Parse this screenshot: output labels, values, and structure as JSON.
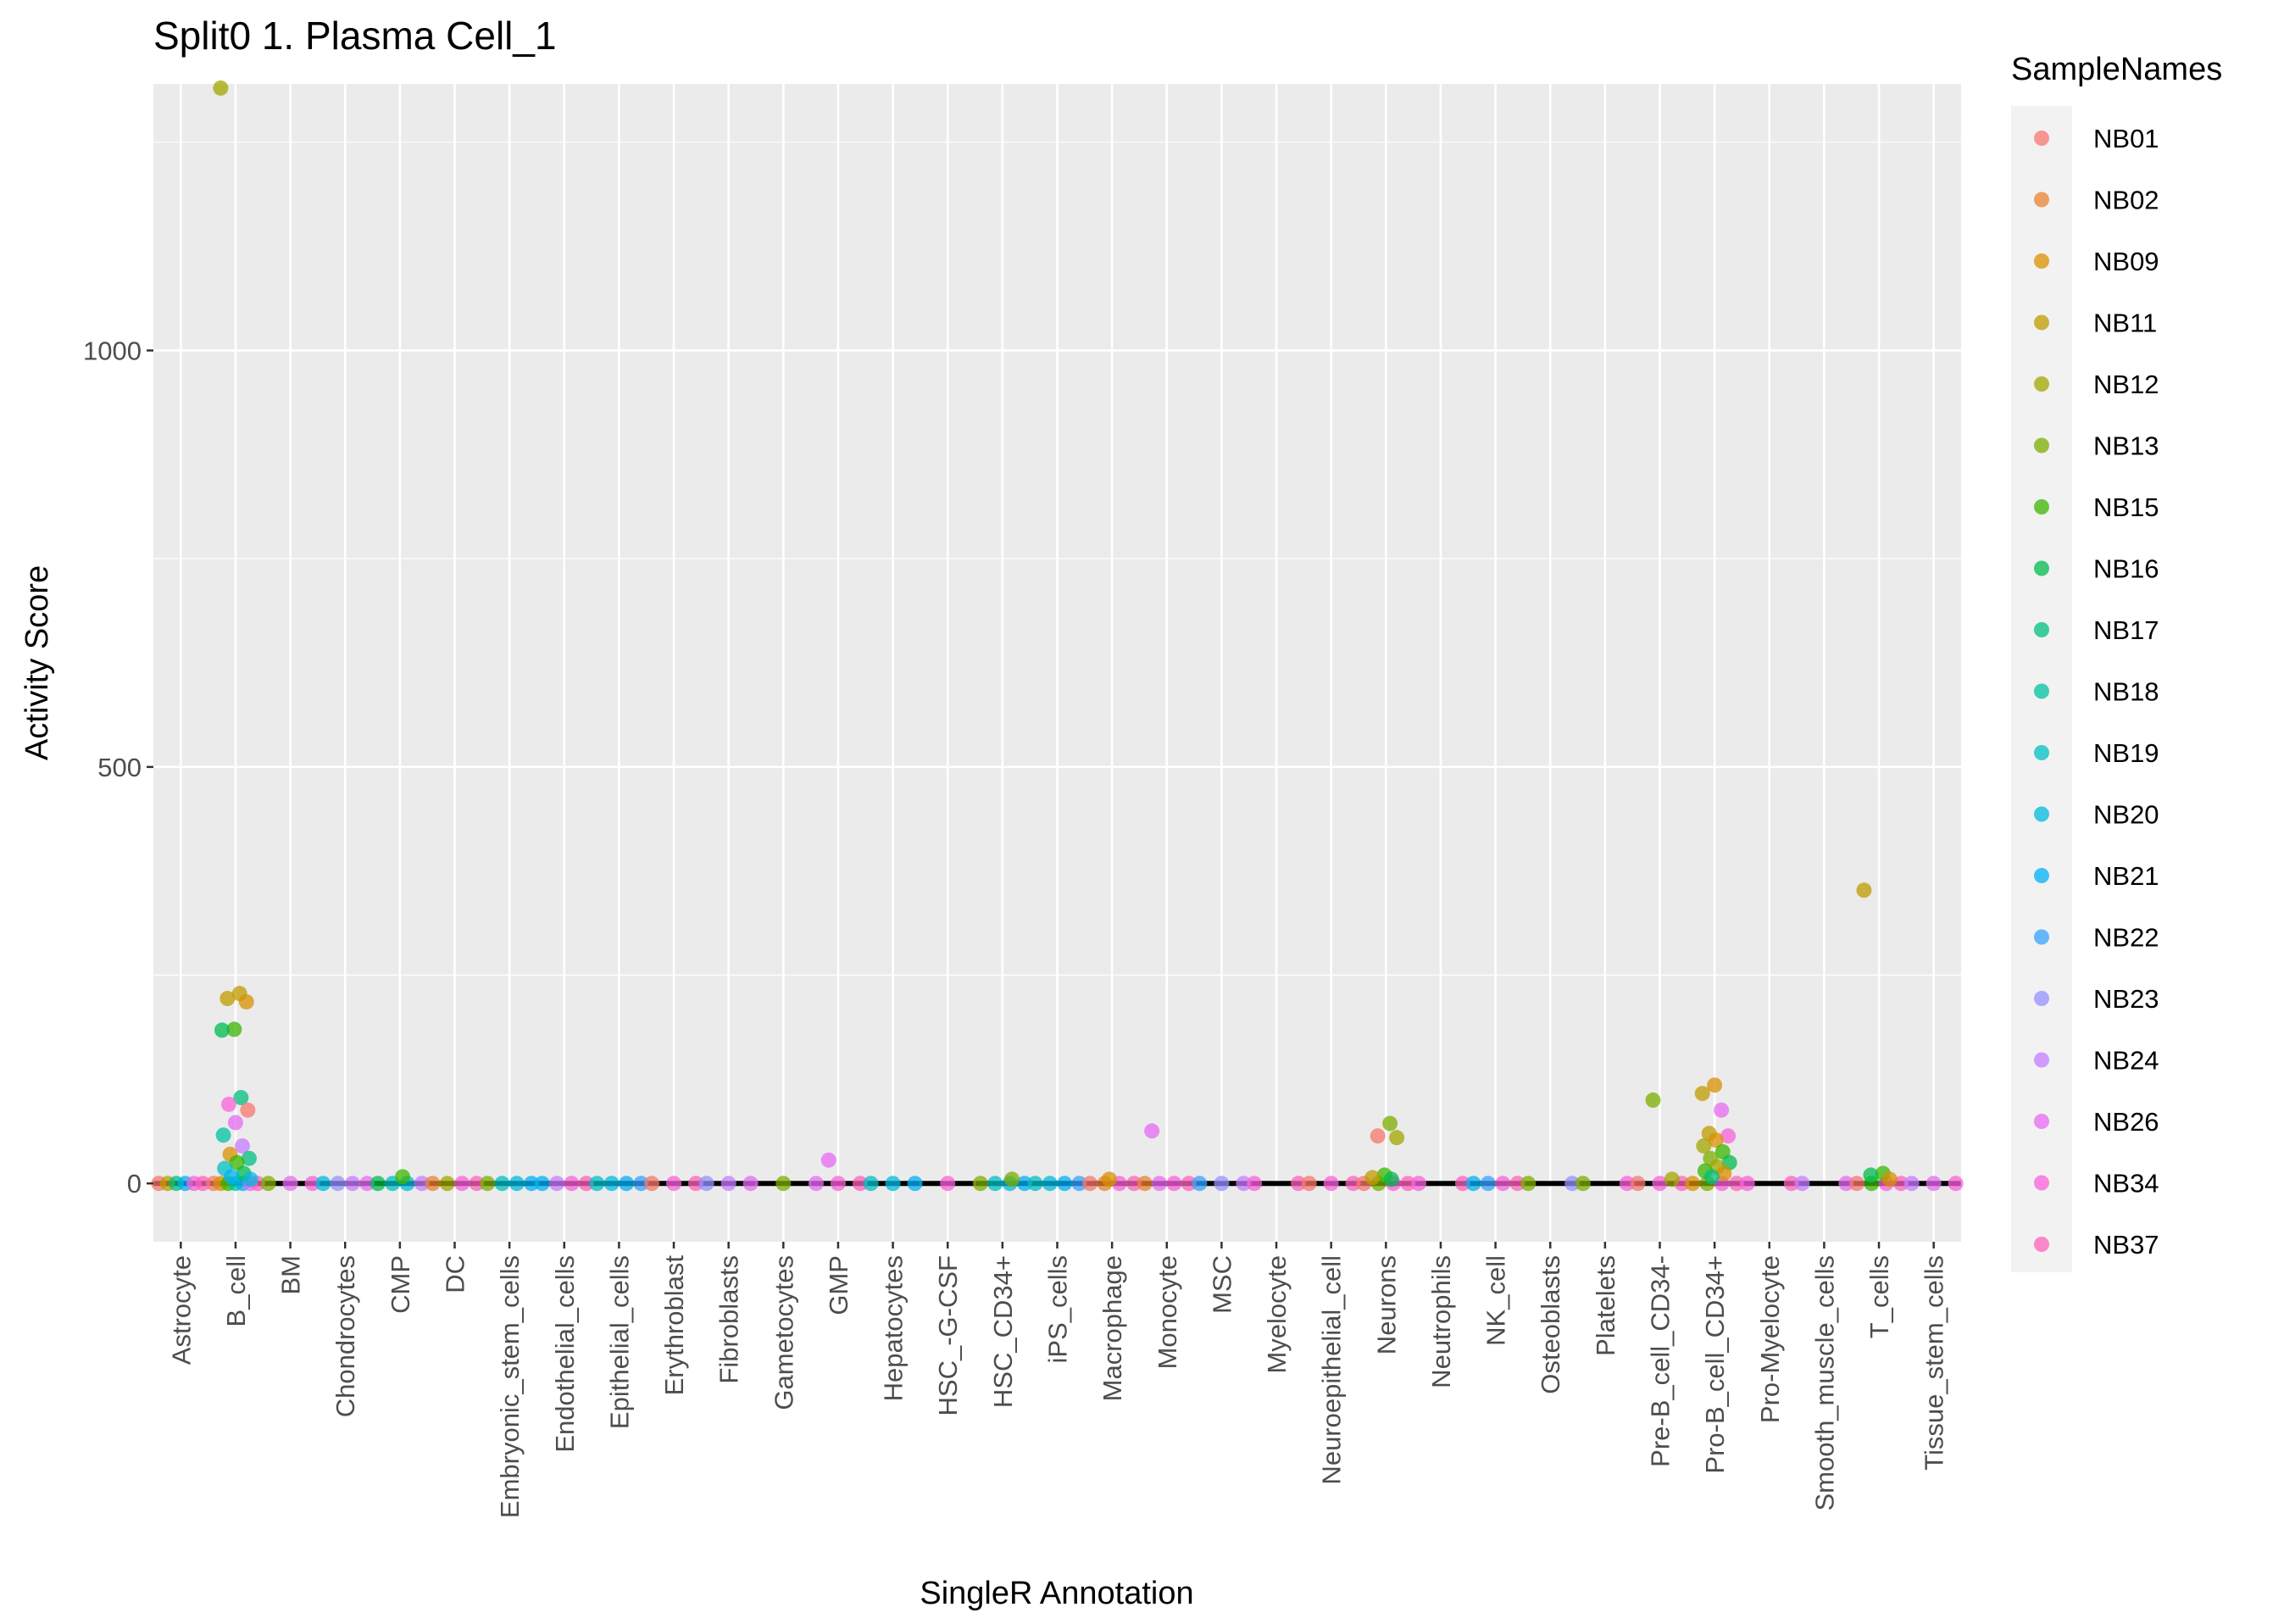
{
  "chart_data": {
    "type": "scatter",
    "title": "Split0 1. Plasma Cell_1",
    "xlabel": "SingleR Annotation",
    "ylabel": "Activity Score",
    "ylim": [
      -70,
      1320
    ],
    "yticks": [
      0,
      500,
      1000
    ],
    "grid": true,
    "categories": [
      "Astrocyte",
      "B_cell",
      "BM",
      "Chondrocytes",
      "CMP",
      "DC",
      "Embryonic_stem_cells",
      "Endothelial_cells",
      "Epithelial_cells",
      "Erythroblast",
      "Fibroblasts",
      "Gametocytes",
      "GMP",
      "Hepatocytes",
      "HSC_-G-CSF",
      "HSC_CD34+",
      "iPS_cells",
      "Macrophage",
      "Monocyte",
      "MSC",
      "Myelocyte",
      "Neuroepithelial_cell",
      "Neurons",
      "Neutrophils",
      "NK_cell",
      "Osteoblasts",
      "Platelets",
      "Pre-B_cell_CD34-",
      "Pro-B_cell_CD34+",
      "Pro-Myelocyte",
      "Smooth_muscle_cells",
      "T_cells",
      "Tissue_stem_cells"
    ],
    "legend": {
      "title": "SampleNames",
      "position": "right",
      "entries": [
        {
          "name": "NB01",
          "color": "#F8766D"
        },
        {
          "name": "NB02",
          "color": "#EA8331"
        },
        {
          "name": "NB09",
          "color": "#D89000"
        },
        {
          "name": "NB11",
          "color": "#C09B00"
        },
        {
          "name": "NB12",
          "color": "#A3A500"
        },
        {
          "name": "NB13",
          "color": "#7CAE00"
        },
        {
          "name": "NB15",
          "color": "#39B600"
        },
        {
          "name": "NB16",
          "color": "#00BB4E"
        },
        {
          "name": "NB17",
          "color": "#00BF7D"
        },
        {
          "name": "NB18",
          "color": "#00C1A3"
        },
        {
          "name": "NB19",
          "color": "#00BFC4"
        },
        {
          "name": "NB20",
          "color": "#00BAE0"
        },
        {
          "name": "NB21",
          "color": "#00B0F6"
        },
        {
          "name": "NB22",
          "color": "#35A2FF"
        },
        {
          "name": "NB23",
          "color": "#9590FF"
        },
        {
          "name": "NB24",
          "color": "#C77CFF"
        },
        {
          "name": "NB26",
          "color": "#E76BF3"
        },
        {
          "name": "NB34",
          "color": "#FA62DB"
        },
        {
          "name": "NB37",
          "color": "#FF62BC"
        }
      ]
    },
    "baseline_samples": {
      "Astrocyte": [
        "NB01",
        "NB11",
        "NB17",
        "NB21",
        "NB34",
        "NB37"
      ],
      "B_cell": [
        "NB01",
        "NB09",
        "NB15",
        "NB18",
        "NB21",
        "NB26",
        "NB37"
      ],
      "BM": [
        "NB13",
        "NB26",
        "NB34"
      ],
      "Chondrocytes": [
        "NB20",
        "NB23",
        "NB24",
        "NB26"
      ],
      "CMP": [
        "NB16",
        "NB19",
        "NB20",
        "NB24"
      ],
      "DC": [
        "NB02",
        "NB12",
        "NB34",
        "NB37"
      ],
      "Embryonic_stem_cells": [
        "NB13",
        "NB19",
        "NB20",
        "NB21"
      ],
      "Endothelial_cells": [
        "NB21",
        "NB24",
        "NB34",
        "NB37"
      ],
      "Epithelial_cells": [
        "NB19",
        "NB20",
        "NB21",
        "NB22"
      ],
      "Erythroblast": [
        "NB01",
        "NB34",
        "NB37"
      ],
      "Fibroblasts": [
        "NB23",
        "NB24",
        "NB26"
      ],
      "Gametocytes": [
        "NB13"
      ],
      "GMP": [
        "NB26",
        "NB34",
        "NB37"
      ],
      "Hepatocytes": [
        "NB19",
        "NB20",
        "NB21"
      ],
      "HSC_-G-CSF": [
        "NB34"
      ],
      "HSC_CD34+": [
        "NB13",
        "NB19",
        "NB20",
        "NB21"
      ],
      "iPS_cells": [
        "NB19",
        "NB20",
        "NB21",
        "NB22"
      ],
      "Macrophage": [
        "NB01",
        "NB02",
        "NB34",
        "NB37"
      ],
      "Monocyte": [
        "NB02",
        "NB26",
        "NB34",
        "NB37"
      ],
      "MSC": [
        "NB22",
        "NB23",
        "NB24"
      ],
      "Myelocyte": [
        "NB34",
        "NB37"
      ],
      "Neuroepithelial_cell": [
        "NB01",
        "NB34",
        "NB37"
      ],
      "Neurons": [
        "NB01",
        "NB13",
        "NB34",
        "NB37"
      ],
      "Neutrophils": [
        "NB34",
        "NB37"
      ],
      "NK_cell": [
        "NB21",
        "NB22",
        "NB34",
        "NB37"
      ],
      "Osteoblasts": [
        "NB13",
        "NB23"
      ],
      "Platelets": [
        "NB13",
        "NB34"
      ],
      "Pre-B_cell_CD34-": [
        "NB01",
        "NB34",
        "NB37"
      ],
      "Pro-B_cell_CD34+": [
        "NB09",
        "NB13",
        "NB34",
        "NB37"
      ],
      "Pro-Myelocyte": [
        "NB34",
        "NB37"
      ],
      "Smooth_muscle_cells": [
        "NB24",
        "NB26"
      ],
      "T_cells": [
        "NB01",
        "NB15",
        "NB34",
        "NB37"
      ],
      "Tissue_stem_cells": [
        "NB24",
        "NB26",
        "NB34"
      ]
    },
    "points": [
      {
        "category": "B_cell",
        "sample": "NB12",
        "y": 1315
      },
      {
        "category": "B_cell",
        "sample": "NB11",
        "y": 228
      },
      {
        "category": "B_cell",
        "sample": "NB11",
        "y": 222
      },
      {
        "category": "B_cell",
        "sample": "NB09",
        "y": 218
      },
      {
        "category": "B_cell",
        "sample": "NB15",
        "y": 185
      },
      {
        "category": "B_cell",
        "sample": "NB16",
        "y": 184
      },
      {
        "category": "B_cell",
        "sample": "NB17",
        "y": 103
      },
      {
        "category": "B_cell",
        "sample": "NB34",
        "y": 95
      },
      {
        "category": "B_cell",
        "sample": "NB01",
        "y": 88
      },
      {
        "category": "B_cell",
        "sample": "NB26",
        "y": 73
      },
      {
        "category": "B_cell",
        "sample": "NB18",
        "y": 58
      },
      {
        "category": "B_cell",
        "sample": "NB24",
        "y": 45
      },
      {
        "category": "B_cell",
        "sample": "NB09",
        "y": 35
      },
      {
        "category": "B_cell",
        "sample": "NB17",
        "y": 30
      },
      {
        "category": "B_cell",
        "sample": "NB15",
        "y": 25
      },
      {
        "category": "B_cell",
        "sample": "NB19",
        "y": 18
      },
      {
        "category": "B_cell",
        "sample": "NB16",
        "y": 12
      },
      {
        "category": "B_cell",
        "sample": "NB21",
        "y": 8
      },
      {
        "category": "B_cell",
        "sample": "NB20",
        "y": 5
      },
      {
        "category": "CMP",
        "sample": "NB15",
        "y": 8
      },
      {
        "category": "GMP",
        "sample": "NB26",
        "y": 28
      },
      {
        "category": "HSC_CD34+",
        "sample": "NB13",
        "y": 5
      },
      {
        "category": "Macrophage",
        "sample": "NB09",
        "y": 5
      },
      {
        "category": "Monocyte",
        "sample": "NB26",
        "y": 63
      },
      {
        "category": "Neurons",
        "sample": "NB13",
        "y": 72
      },
      {
        "category": "Neurons",
        "sample": "NB01",
        "y": 57
      },
      {
        "category": "Neurons",
        "sample": "NB12",
        "y": 55
      },
      {
        "category": "Neurons",
        "sample": "NB15",
        "y": 10
      },
      {
        "category": "Neurons",
        "sample": "NB11",
        "y": 7
      },
      {
        "category": "Neurons",
        "sample": "NB16",
        "y": 5
      },
      {
        "category": "Pre-B_cell_CD34-",
        "sample": "NB13",
        "y": 100
      },
      {
        "category": "Pre-B_cell_CD34-",
        "sample": "NB12",
        "y": 5
      },
      {
        "category": "Pro-B_cell_CD34+",
        "sample": "NB09",
        "y": 118
      },
      {
        "category": "Pro-B_cell_CD34+",
        "sample": "NB11",
        "y": 108
      },
      {
        "category": "Pro-B_cell_CD34+",
        "sample": "NB26",
        "y": 88
      },
      {
        "category": "Pro-B_cell_CD34+",
        "sample": "NB11",
        "y": 60
      },
      {
        "category": "Pro-B_cell_CD34+",
        "sample": "NB34",
        "y": 57
      },
      {
        "category": "Pro-B_cell_CD34+",
        "sample": "NB09",
        "y": 52
      },
      {
        "category": "Pro-B_cell_CD34+",
        "sample": "NB12",
        "y": 45
      },
      {
        "category": "Pro-B_cell_CD34+",
        "sample": "NB15",
        "y": 38
      },
      {
        "category": "Pro-B_cell_CD34+",
        "sample": "NB13",
        "y": 30
      },
      {
        "category": "Pro-B_cell_CD34+",
        "sample": "NB16",
        "y": 25
      },
      {
        "category": "Pro-B_cell_CD34+",
        "sample": "NB12",
        "y": 20
      },
      {
        "category": "Pro-B_cell_CD34+",
        "sample": "NB15",
        "y": 15
      },
      {
        "category": "Pro-B_cell_CD34+",
        "sample": "NB09",
        "y": 12
      },
      {
        "category": "Pro-B_cell_CD34+",
        "sample": "NB17",
        "y": 8
      },
      {
        "category": "T_cells",
        "sample": "NB11",
        "y": 352
      },
      {
        "category": "T_cells",
        "sample": "NB15",
        "y": 12
      },
      {
        "category": "T_cells",
        "sample": "NB16",
        "y": 10
      },
      {
        "category": "T_cells",
        "sample": "NB09",
        "y": 5
      }
    ]
  }
}
